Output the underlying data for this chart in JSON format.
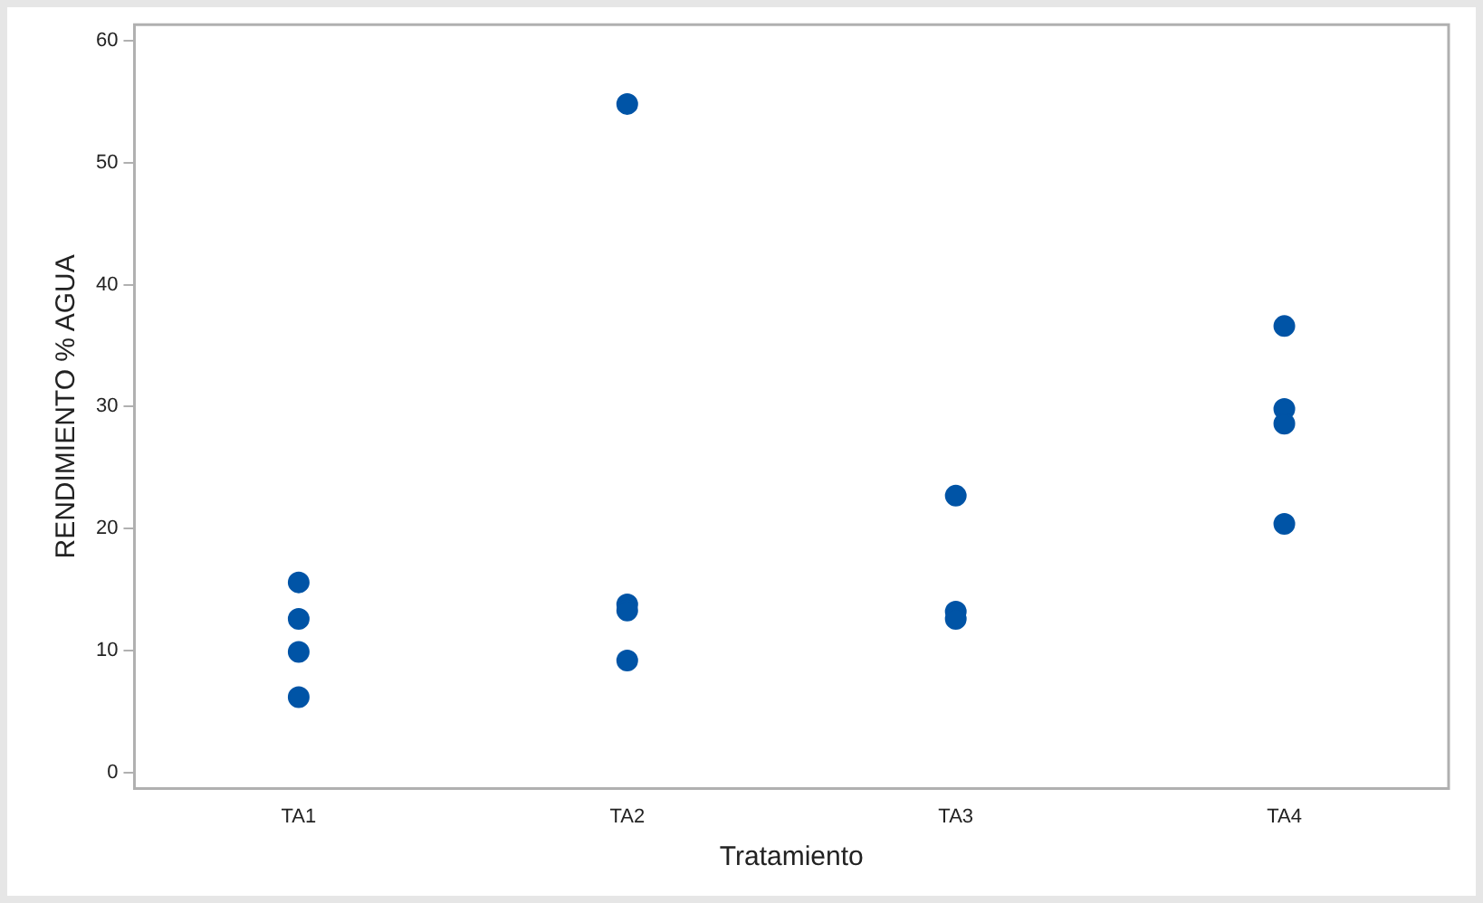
{
  "chart_data": {
    "type": "scatter",
    "xlabel": "Tratamiento",
    "ylabel": "RENDIMIENTO % AGUA",
    "categories": [
      "TA1",
      "TA2",
      "TA3",
      "TA4"
    ],
    "series": [
      {
        "color": "#0054a6",
        "x": [
          "TA1",
          "TA1",
          "TA1",
          "TA1",
          "TA2",
          "TA2",
          "TA2",
          "TA2",
          "TA3",
          "TA3",
          "TA3",
          "TA4",
          "TA4",
          "TA4",
          "TA4"
        ],
        "values": [
          15.6,
          12.6,
          9.9,
          6.2,
          54.8,
          13.8,
          13.3,
          9.2,
          22.7,
          13.2,
          12.6,
          36.6,
          29.8,
          28.6,
          20.4
        ]
      }
    ],
    "ylim": [
      -1.3,
      61.3
    ],
    "yticks": [
      0,
      10,
      20,
      30,
      40,
      50,
      60
    ],
    "grid": false,
    "legend": false,
    "marker": "circle"
  }
}
